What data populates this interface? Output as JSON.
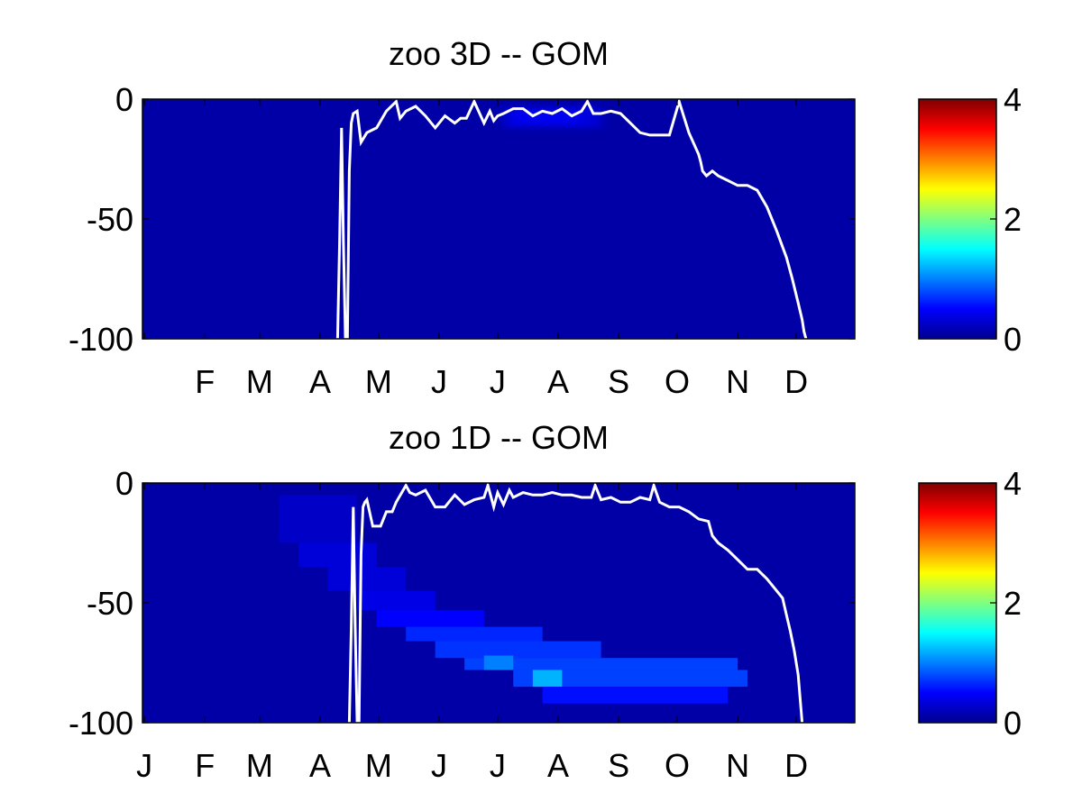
{
  "colors": {
    "background": "#ffffff",
    "contour_line": "#ffffff",
    "axes_frame": "#000000",
    "colormap": "jet"
  },
  "chart_data": [
    {
      "type": "heatmap",
      "title": "zoo 3D   -- GOM",
      "xlabel": "",
      "ylabel": "",
      "x_tick_labels": [
        "F",
        "M",
        "A",
        "M",
        "J",
        "J",
        "A",
        "S",
        "O",
        "N",
        "D"
      ],
      "x_tick_values": [
        32,
        60,
        91,
        121,
        152,
        182,
        213,
        244,
        274,
        305,
        335
      ],
      "xlim": [
        0,
        365
      ],
      "y_tick_labels": [
        "0",
        "-50",
        "-100"
      ],
      "y_tick_values": [
        0,
        -50,
        -100
      ],
      "ylim": [
        -100,
        0
      ],
      "colorbar": {
        "ticks": [
          "0",
          "2",
          "4"
        ],
        "range": [
          0,
          4
        ]
      },
      "grid": false,
      "background_value": 0.15,
      "patches": [
        {
          "day_start": 185,
          "day_end": 235,
          "depth_top": -3,
          "depth_bottom": -12,
          "value": 0.35
        },
        {
          "day_start": 190,
          "day_end": 225,
          "depth_top": -5,
          "depth_bottom": -10,
          "value": 0.45
        }
      ],
      "white_line": {
        "series_name": "",
        "day": [
          100,
          101,
          102,
          103,
          104,
          105,
          106,
          107,
          108,
          110,
          112,
          115,
          120,
          125,
          130,
          132,
          135,
          140,
          145,
          150,
          155,
          160,
          163,
          166,
          170,
          175,
          178,
          180,
          182,
          185,
          190,
          195,
          200,
          205,
          210,
          215,
          220,
          225,
          228,
          231,
          235,
          240,
          245,
          250,
          255,
          260,
          265,
          270,
          275,
          280,
          285,
          286,
          287,
          289,
          292,
          295,
          300,
          305,
          310,
          315,
          320,
          325,
          330,
          333,
          336,
          338,
          339,
          340
        ],
        "depth": [
          -100,
          -60,
          -12,
          -60,
          -100,
          -100,
          -30,
          -10,
          -6,
          -5,
          -18,
          -14,
          -12,
          -5,
          -1,
          -8,
          -5,
          -3,
          -7,
          -12,
          -7,
          -10,
          -8,
          -8,
          -1,
          -10,
          -5,
          -9,
          -7,
          -6,
          -4,
          -4,
          -7,
          -5,
          -6,
          -4,
          -7,
          -5,
          -1,
          -6,
          -6,
          -5,
          -6,
          -10,
          -14,
          -15,
          -15,
          -15,
          -1,
          -14,
          -23,
          -26,
          -30,
          -32,
          -30,
          -32,
          -34,
          -36,
          -36,
          -38,
          -45,
          -55,
          -66,
          -75,
          -85,
          -92,
          -97,
          -100
        ]
      }
    },
    {
      "type": "heatmap",
      "title": "zoo 1D   -- GOM",
      "xlabel": "",
      "ylabel": "",
      "x_tick_labels": [
        "J",
        "F",
        "M",
        "A",
        "M",
        "J",
        "J",
        "A",
        "S",
        "O",
        "N",
        "D"
      ],
      "x_tick_values": [
        1,
        32,
        60,
        91,
        121,
        152,
        182,
        213,
        244,
        274,
        305,
        335
      ],
      "xlim": [
        0,
        365
      ],
      "y_tick_labels": [
        "0",
        "-50",
        "-100"
      ],
      "y_tick_values": [
        0,
        -50,
        -100
      ],
      "ylim": [
        -100,
        0
      ],
      "colorbar": {
        "ticks": [
          "0",
          "2",
          "4"
        ],
        "range": [
          0,
          4
        ]
      },
      "grid": false,
      "background_value": 0.15,
      "patches": [
        {
          "day_start": 70,
          "day_end": 110,
          "depth_top": -5,
          "depth_bottom": -25,
          "value": 0.28
        },
        {
          "day_start": 80,
          "day_end": 120,
          "depth_top": -25,
          "depth_bottom": -35,
          "value": 0.35
        },
        {
          "day_start": 95,
          "day_end": 135,
          "depth_top": -35,
          "depth_bottom": -45,
          "value": 0.35
        },
        {
          "day_start": 110,
          "day_end": 150,
          "depth_top": -45,
          "depth_bottom": -53,
          "value": 0.4
        },
        {
          "day_start": 120,
          "day_end": 175,
          "depth_top": -53,
          "depth_bottom": -60,
          "value": 0.5
        },
        {
          "day_start": 135,
          "day_end": 205,
          "depth_top": -60,
          "depth_bottom": -66,
          "value": 0.65
        },
        {
          "day_start": 150,
          "day_end": 235,
          "depth_top": -66,
          "depth_bottom": -73,
          "value": 0.7
        },
        {
          "day_start": 165,
          "day_end": 305,
          "depth_top": -73,
          "depth_bottom": -78,
          "value": 0.75
        },
        {
          "day_start": 175,
          "day_end": 190,
          "depth_top": -72,
          "depth_bottom": -78,
          "value": 1.0
        },
        {
          "day_start": 190,
          "day_end": 310,
          "depth_top": -78,
          "depth_bottom": -85,
          "value": 0.75
        },
        {
          "day_start": 200,
          "day_end": 215,
          "depth_top": -78,
          "depth_bottom": -85,
          "value": 1.2
        },
        {
          "day_start": 205,
          "day_end": 300,
          "depth_top": -85,
          "depth_bottom": -92,
          "value": 0.55
        }
      ],
      "white_line": {
        "series_name": "",
        "day": [
          106,
          107,
          108,
          109,
          110,
          111,
          112,
          113,
          114,
          115,
          118,
          122,
          125,
          128,
          130,
          135,
          137,
          140,
          145,
          150,
          155,
          160,
          165,
          170,
          175,
          177,
          180,
          182,
          185,
          188,
          190,
          195,
          200,
          205,
          210,
          215,
          220,
          225,
          230,
          232,
          235,
          240,
          245,
          250,
          255,
          260,
          262,
          265,
          270,
          275,
          280,
          285,
          290,
          292,
          295,
          300,
          305,
          310,
          315,
          320,
          325,
          328,
          330,
          332,
          334,
          336,
          337,
          338
        ],
        "depth": [
          -100,
          -60,
          -10,
          -60,
          -100,
          -100,
          -30,
          -10,
          -8,
          -7,
          -18,
          -18,
          -12,
          -12,
          -8,
          -1,
          -4,
          -5,
          -3,
          -10,
          -10,
          -5,
          -9,
          -7,
          -6,
          -1,
          -10,
          -4,
          -9,
          -3,
          -6,
          -4,
          -5,
          -5,
          -4,
          -5,
          -5,
          -6,
          -6,
          -1,
          -7,
          -6,
          -8,
          -8,
          -6,
          -7,
          -1,
          -8,
          -10,
          -10,
          -12,
          -15,
          -16,
          -22,
          -25,
          -28,
          -32,
          -36,
          -36,
          -40,
          -45,
          -48,
          -55,
          -62,
          -70,
          -80,
          -90,
          -100
        ]
      }
    }
  ]
}
